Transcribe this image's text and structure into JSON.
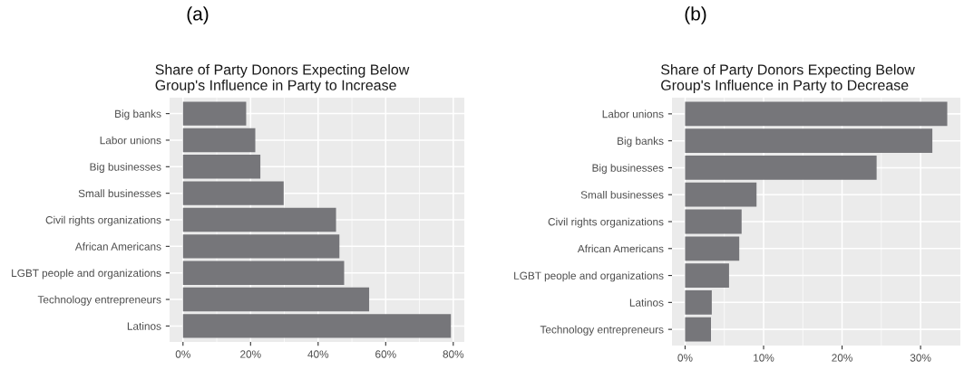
{
  "chart_data": [
    {
      "type": "bar",
      "orientation": "horizontal",
      "title": "Share of Party Donors Expecting Below\nGroup's Influence in Party to Increase",
      "annotations": [
        "(a)"
      ],
      "categories": [
        "Big banks",
        "Labor unions",
        "Big businesses",
        "Small businesses",
        "Civil rights organizations",
        "African Americans",
        "LGBT people and organizations",
        "Technology entrepreneurs",
        "Latinos"
      ],
      "values": [
        18.7,
        21.4,
        22.9,
        29.8,
        45.3,
        46.3,
        47.7,
        55.1,
        79.3
      ],
      "color": "#76767a",
      "xlim": [
        -3.97,
        83.27
      ],
      "xticks": [
        {
          "value": 0,
          "label": "0%"
        },
        {
          "value": 20,
          "label": "20%"
        },
        {
          "value": 40,
          "label": "40%"
        },
        {
          "value": 60,
          "label": "60%"
        },
        {
          "value": 80,
          "label": "80%"
        }
      ],
      "grid": true,
      "legend": false
    },
    {
      "type": "bar",
      "orientation": "horizontal",
      "title": "Share of Party Donors Expecting Below\nGroup's Influence in Party to Decrease",
      "annotations": [
        "(b)"
      ],
      "categories": [
        "Labor unions",
        "Big banks",
        "Big businesses",
        "Small businesses",
        "Civil rights organizations",
        "African Americans",
        "LGBT people and organizations",
        "Latinos",
        "Technology entrepreneurs"
      ],
      "values": [
        33.4,
        31.5,
        24.4,
        9.1,
        7.2,
        6.9,
        5.6,
        3.4,
        3.3
      ],
      "color": "#76767a",
      "xlim": [
        -1.67,
        35.07
      ],
      "xticks": [
        {
          "value": 0,
          "label": "0%"
        },
        {
          "value": 10,
          "label": "10%"
        },
        {
          "value": 20,
          "label": "20%"
        },
        {
          "value": 30,
          "label": "30%"
        }
      ],
      "grid": true,
      "legend": false
    }
  ]
}
